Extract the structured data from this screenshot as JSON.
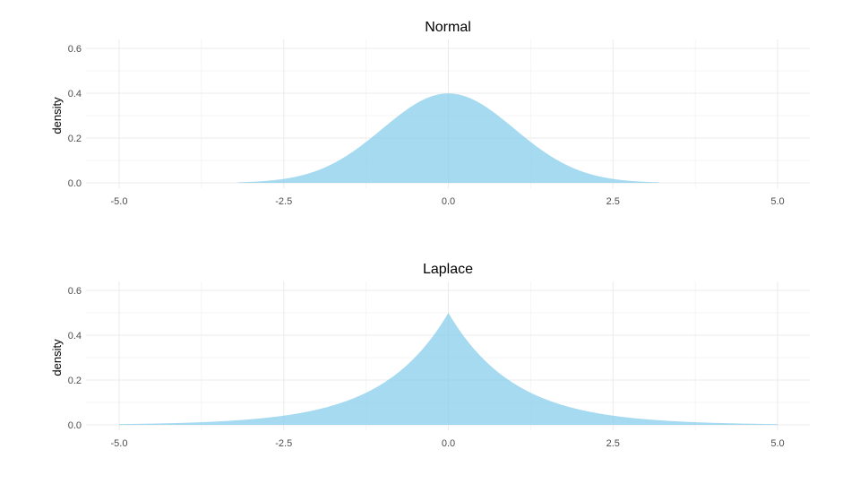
{
  "chart_data": [
    {
      "type": "area",
      "title": "Normal",
      "xlabel": "",
      "ylabel": "density",
      "distribution": "normal",
      "mean": 0,
      "sd": 1,
      "x_range": [
        -3.2,
        3.2
      ],
      "xlim": [
        -5.0,
        5.0
      ],
      "ylim": [
        0.0,
        0.6
      ],
      "x_ticks": [
        "-5.0",
        "-2.5",
        "0.0",
        "2.5",
        "5.0"
      ],
      "y_ticks": [
        "0.0",
        "0.2",
        "0.4",
        "0.6"
      ],
      "peak_density": 0.4,
      "fill_color": "#87ceeb",
      "grid": true
    },
    {
      "type": "area",
      "title": "Laplace",
      "xlabel": "",
      "ylabel": "density",
      "distribution": "laplace",
      "location": 0,
      "scale": 1,
      "x_range": [
        -5.0,
        5.0
      ],
      "xlim": [
        -5.0,
        5.0
      ],
      "ylim": [
        0.0,
        0.6
      ],
      "x_ticks": [
        "-5.0",
        "-2.5",
        "0.0",
        "2.5",
        "5.0"
      ],
      "y_ticks": [
        "0.0",
        "0.2",
        "0.4",
        "0.6"
      ],
      "peak_density": 0.5,
      "fill_color": "#87ceeb",
      "grid": true
    }
  ]
}
